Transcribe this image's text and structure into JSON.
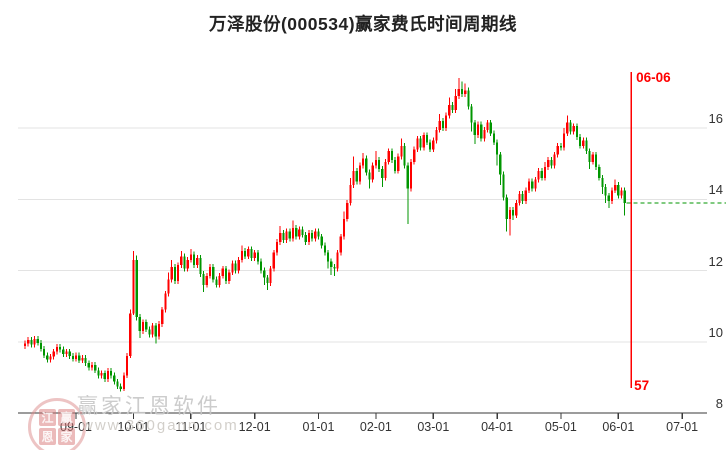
{
  "window": {
    "title": "万泽股份(000534)赢家费氏时间周期线"
  },
  "colors": {
    "up": "#ff0000",
    "down": "#009600",
    "grid": "#e3e3e3",
    "axis": "#3a3a3a",
    "tick_label": "#333333",
    "marker": "#ff0000",
    "watermark_text": "#c7c7c7",
    "background": "#ffffff"
  },
  "y_axis": {
    "labels": [
      "16",
      "14",
      "12",
      "10",
      "8"
    ],
    "prices": [
      16,
      14,
      12,
      10,
      8
    ]
  },
  "x_axis": {
    "labels": [
      "09-01",
      "10-01",
      "11-01",
      "12-01",
      "01-01",
      "02-01",
      "03-01",
      "04-01",
      "05-01",
      "06-01",
      "07-01"
    ],
    "indices": [
      16,
      34,
      52,
      72,
      92,
      110,
      128,
      148,
      168,
      186,
      206
    ]
  },
  "marker_line": {
    "date_label": "06-06",
    "count_label": "57",
    "index": 190
  },
  "last_price_line": {
    "price": 13.9,
    "style": "dashed"
  },
  "watermark": {
    "brand": "赢家江恩软件",
    "site": "www.360gann.com",
    "seal_chars": "江赢恩家"
  },
  "chart_data": {
    "type": "candlestick",
    "title": "万泽股份(000534)赢家费氏时间周期线",
    "stock": {
      "name": "万泽股份",
      "code": "000534"
    },
    "indicator": "赢家费氏时间周期线",
    "fib_time_marker": {
      "date": "06-06",
      "bar_count": 57
    },
    "ylim": [
      8,
      17.8
    ],
    "grid": "horizontal-only",
    "x_tick_labels": [
      "09-01",
      "10-01",
      "11-01",
      "12-01",
      "01-01",
      "02-01",
      "03-01",
      "04-01",
      "05-01",
      "06-01",
      "07-01"
    ],
    "last_close": 13.9,
    "candles_format": [
      "open",
      "high",
      "low",
      "close"
    ],
    "candles": [
      [
        9.88,
        10.03,
        9.8,
        9.95
      ],
      [
        9.95,
        10.13,
        9.87,
        10.05
      ],
      [
        10.05,
        10.13,
        9.84,
        9.92
      ],
      [
        9.92,
        10.16,
        9.84,
        10.08
      ],
      [
        10.08,
        10.16,
        9.89,
        9.97
      ],
      [
        9.97,
        10.05,
        9.72,
        9.8
      ],
      [
        9.8,
        9.88,
        9.54,
        9.62
      ],
      [
        9.62,
        9.7,
        9.42,
        9.5
      ],
      [
        9.5,
        9.66,
        9.42,
        9.58
      ],
      [
        9.58,
        9.8,
        9.5,
        9.72
      ],
      [
        9.72,
        9.93,
        9.64,
        9.85
      ],
      [
        9.85,
        9.93,
        9.7,
        9.78
      ],
      [
        9.78,
        9.86,
        9.57,
        9.65
      ],
      [
        9.65,
        9.8,
        9.57,
        9.72
      ],
      [
        9.72,
        9.8,
        9.52,
        9.6
      ],
      [
        9.6,
        9.68,
        9.44,
        9.52
      ],
      [
        9.52,
        9.7,
        9.44,
        9.62
      ],
      [
        9.62,
        9.7,
        9.4,
        9.48
      ],
      [
        9.48,
        9.63,
        9.4,
        9.55
      ],
      [
        9.55,
        9.63,
        9.32,
        9.4
      ],
      [
        9.4,
        9.48,
        9.2,
        9.28
      ],
      [
        9.28,
        9.43,
        9.2,
        9.35
      ],
      [
        9.35,
        9.43,
        9.12,
        9.2
      ],
      [
        9.2,
        9.28,
        8.97,
        9.05
      ],
      [
        9.05,
        9.2,
        8.97,
        9.12
      ],
      [
        9.12,
        9.2,
        8.87,
        8.95
      ],
      [
        8.95,
        9.26,
        8.87,
        9.18
      ],
      [
        9.18,
        9.26,
        8.97,
        9.05
      ],
      [
        9.05,
        9.13,
        8.8,
        8.88
      ],
      [
        8.88,
        8.96,
        8.67,
        8.75
      ],
      [
        8.75,
        8.83,
        8.6,
        8.68
      ],
      [
        8.68,
        9.13,
        8.62,
        9.05
      ],
      [
        9.05,
        9.68,
        8.98,
        9.6
      ],
      [
        9.6,
        10.9,
        9.55,
        10.8
      ],
      [
        10.8,
        12.55,
        10.75,
        12.3
      ],
      [
        12.3,
        12.42,
        10.6,
        10.7
      ],
      [
        10.7,
        10.78,
        10.1,
        10.3
      ],
      [
        10.3,
        10.63,
        10.22,
        10.55
      ],
      [
        10.55,
        10.63,
        10.27,
        10.35
      ],
      [
        10.35,
        10.43,
        10.12,
        10.2
      ],
      [
        10.2,
        10.53,
        10.12,
        10.45
      ],
      [
        10.45,
        10.53,
        9.95,
        10.15
      ],
      [
        10.15,
        10.58,
        10.07,
        10.5
      ],
      [
        10.5,
        10.98,
        10.42,
        10.9
      ],
      [
        10.9,
        11.43,
        10.82,
        11.35
      ],
      [
        11.35,
        11.95,
        11.27,
        11.75
      ],
      [
        11.75,
        12.3,
        11.67,
        12.1
      ],
      [
        12.1,
        12.18,
        11.62,
        11.7
      ],
      [
        11.7,
        12.23,
        11.62,
        12.15
      ],
      [
        12.15,
        12.55,
        12.07,
        12.4
      ],
      [
        12.4,
        12.48,
        11.97,
        12.05
      ],
      [
        12.05,
        12.38,
        11.97,
        12.3
      ],
      [
        12.3,
        12.6,
        12.22,
        12.45
      ],
      [
        12.45,
        12.53,
        12.07,
        12.15
      ],
      [
        12.15,
        12.43,
        12.07,
        12.35
      ],
      [
        12.35,
        12.43,
        11.82,
        11.9
      ],
      [
        11.9,
        11.98,
        11.4,
        11.6
      ],
      [
        11.6,
        11.93,
        11.52,
        11.85
      ],
      [
        11.85,
        12.18,
        11.77,
        12.1
      ],
      [
        12.1,
        12.18,
        11.67,
        11.75
      ],
      [
        11.75,
        11.83,
        11.52,
        11.6
      ],
      [
        11.6,
        11.93,
        11.52,
        11.85
      ],
      [
        11.85,
        12.13,
        11.77,
        12.05
      ],
      [
        12.05,
        12.13,
        11.62,
        11.7
      ],
      [
        11.7,
        12.03,
        11.62,
        11.95
      ],
      [
        11.95,
        12.28,
        11.87,
        12.2
      ],
      [
        12.2,
        12.28,
        11.92,
        12
      ],
      [
        12,
        12.38,
        11.92,
        12.3
      ],
      [
        12.3,
        12.7,
        12.22,
        12.55
      ],
      [
        12.55,
        12.63,
        12.32,
        12.4
      ],
      [
        12.4,
        12.68,
        12.32,
        12.6
      ],
      [
        12.6,
        12.68,
        12.27,
        12.35
      ],
      [
        12.35,
        12.58,
        12.27,
        12.5
      ],
      [
        12.5,
        12.58,
        12.17,
        12.25
      ],
      [
        12.25,
        12.33,
        11.92,
        12
      ],
      [
        12,
        12.08,
        11.6,
        11.8
      ],
      [
        11.8,
        11.88,
        11.45,
        11.65
      ],
      [
        11.65,
        12.13,
        11.57,
        12.05
      ],
      [
        12.05,
        12.58,
        11.97,
        12.5
      ],
      [
        12.5,
        12.88,
        12.42,
        12.8
      ],
      [
        12.8,
        13.25,
        12.72,
        13.05
      ],
      [
        13.05,
        13.13,
        12.77,
        12.85
      ],
      [
        12.85,
        13.18,
        12.77,
        13.1
      ],
      [
        13.1,
        13.18,
        12.82,
        12.9
      ],
      [
        12.9,
        13.4,
        12.82,
        13.2
      ],
      [
        13.2,
        13.28,
        12.87,
        12.95
      ],
      [
        12.95,
        13.23,
        12.87,
        13.15
      ],
      [
        13.15,
        13.23,
        12.92,
        13
      ],
      [
        13,
        13.08,
        12.72,
        12.8
      ],
      [
        12.8,
        13.13,
        12.72,
        13.05
      ],
      [
        13.05,
        13.13,
        12.82,
        12.9
      ],
      [
        12.9,
        13.18,
        12.82,
        13.1
      ],
      [
        13.1,
        13.18,
        12.87,
        12.95
      ],
      [
        12.95,
        13.03,
        12.62,
        12.7
      ],
      [
        12.7,
        12.78,
        12.42,
        12.5
      ],
      [
        12.5,
        12.58,
        12.05,
        12.25
      ],
      [
        12.25,
        12.33,
        11.88,
        12.1
      ],
      [
        12.1,
        12.18,
        11.85,
        12.05
      ],
      [
        12.05,
        12.58,
        11.97,
        12.5
      ],
      [
        12.5,
        13.03,
        12.42,
        12.95
      ],
      [
        12.95,
        13.65,
        12.87,
        13.45
      ],
      [
        13.45,
        13.98,
        13.37,
        13.9
      ],
      [
        13.9,
        14.6,
        13.82,
        14.4
      ],
      [
        14.4,
        15.2,
        14.32,
        14.8
      ],
      [
        14.8,
        14.88,
        14.42,
        14.5
      ],
      [
        14.5,
        15.03,
        14.42,
        14.95
      ],
      [
        14.95,
        15.3,
        14.87,
        15.15
      ],
      [
        15.15,
        15.23,
        14.67,
        14.75
      ],
      [
        14.75,
        14.83,
        14.3,
        14.55
      ],
      [
        14.55,
        15.03,
        14.47,
        14.95
      ],
      [
        14.95,
        15.35,
        14.87,
        15.1
      ],
      [
        15.1,
        15.18,
        14.77,
        14.85
      ],
      [
        14.85,
        14.93,
        14.35,
        14.6
      ],
      [
        14.6,
        15.13,
        14.52,
        15.05
      ],
      [
        15.05,
        15.43,
        14.97,
        15.35
      ],
      [
        15.35,
        15.43,
        15.02,
        15.1
      ],
      [
        15.1,
        15.18,
        14.72,
        14.8
      ],
      [
        14.8,
        15.28,
        14.72,
        15.2
      ],
      [
        15.2,
        15.7,
        15.12,
        15.5
      ],
      [
        15.5,
        15.58,
        14.87,
        14.95
      ],
      [
        14.95,
        15.03,
        13.3,
        14.3
      ],
      [
        14.3,
        15.13,
        14.22,
        15.05
      ],
      [
        15.05,
        15.48,
        14.97,
        15.4
      ],
      [
        15.4,
        15.78,
        15.32,
        15.7
      ],
      [
        15.7,
        15.78,
        15.37,
        15.45
      ],
      [
        15.45,
        15.88,
        15.37,
        15.8
      ],
      [
        15.8,
        15.88,
        15.52,
        15.6
      ],
      [
        15.6,
        15.68,
        15.32,
        15.4
      ],
      [
        15.4,
        15.73,
        15.32,
        15.65
      ],
      [
        15.65,
        16.03,
        15.57,
        15.95
      ],
      [
        15.95,
        16.4,
        15.87,
        16.2
      ],
      [
        16.2,
        16.28,
        15.92,
        16
      ],
      [
        16,
        16.43,
        15.92,
        16.35
      ],
      [
        16.35,
        16.85,
        16.27,
        16.65
      ],
      [
        16.65,
        16.73,
        16.42,
        16.5
      ],
      [
        16.5,
        17.1,
        16.42,
        16.9
      ],
      [
        16.9,
        17.4,
        16.82,
        17.1
      ],
      [
        17.1,
        17.3,
        16.87,
        16.95
      ],
      [
        16.95,
        17.25,
        16.87,
        17.05
      ],
      [
        17.05,
        17.13,
        16.52,
        16.6
      ],
      [
        16.6,
        16.68,
        15.9,
        16.15
      ],
      [
        16.15,
        16.23,
        15.55,
        15.8
      ],
      [
        15.8,
        16.18,
        15.72,
        16.1
      ],
      [
        16.1,
        16.18,
        15.62,
        15.7
      ],
      [
        15.7,
        16.03,
        15.62,
        15.95
      ],
      [
        15.95,
        16.23,
        15.87,
        16.15
      ],
      [
        16.15,
        16.23,
        15.77,
        15.85
      ],
      [
        15.85,
        15.93,
        15.52,
        15.6
      ],
      [
        15.6,
        15.68,
        14.95,
        15.25
      ],
      [
        15.25,
        15.33,
        14.4,
        14.7
      ],
      [
        14.7,
        14.78,
        13.97,
        14.05
      ],
      [
        14.05,
        14.13,
        13.1,
        13.45
      ],
      [
        13.45,
        13.78,
        12.98,
        13.7
      ],
      [
        13.7,
        13.78,
        13.42,
        13.55
      ],
      [
        13.55,
        13.98,
        13.47,
        13.9
      ],
      [
        13.9,
        14.23,
        13.82,
        14.15
      ],
      [
        14.15,
        14.23,
        13.87,
        13.95
      ],
      [
        13.95,
        14.33,
        13.87,
        14.25
      ],
      [
        14.25,
        14.58,
        14.17,
        14.5
      ],
      [
        14.5,
        14.58,
        14.22,
        14.3
      ],
      [
        14.3,
        14.63,
        14.22,
        14.55
      ],
      [
        14.55,
        14.88,
        14.47,
        14.8
      ],
      [
        14.8,
        14.88,
        14.52,
        14.6
      ],
      [
        14.6,
        15.05,
        14.52,
        14.9
      ],
      [
        14.9,
        15.18,
        14.82,
        15.1
      ],
      [
        15.1,
        15.18,
        14.87,
        14.95
      ],
      [
        14.95,
        15.33,
        14.87,
        15.25
      ],
      [
        15.25,
        15.58,
        15.17,
        15.5
      ],
      [
        15.5,
        15.58,
        15.37,
        15.45
      ],
      [
        15.45,
        16,
        15.37,
        15.85
      ],
      [
        15.85,
        16.35,
        15.77,
        16.15
      ],
      [
        16.15,
        16.23,
        15.82,
        15.9
      ],
      [
        15.9,
        16.13,
        15.82,
        16.05
      ],
      [
        16.05,
        16.13,
        15.67,
        15.75
      ],
      [
        15.75,
        15.83,
        15.42,
        15.5
      ],
      [
        15.5,
        15.73,
        15.42,
        15.65
      ],
      [
        15.65,
        15.73,
        15.27,
        15.35
      ],
      [
        15.35,
        15.43,
        14.85,
        15.05
      ],
      [
        15.05,
        15.33,
        14.97,
        15.25
      ],
      [
        15.25,
        15.33,
        14.82,
        14.9
      ],
      [
        14.9,
        14.98,
        14.52,
        14.6
      ],
      [
        14.6,
        14.68,
        14.15,
        14.35
      ],
      [
        14.35,
        14.43,
        13.9,
        14.1
      ],
      [
        14.1,
        14.18,
        13.75,
        13.95
      ],
      [
        13.95,
        14.33,
        13.87,
        14.25
      ],
      [
        14.25,
        14.55,
        14.17,
        14.4
      ],
      [
        14.4,
        14.48,
        14.02,
        14.1
      ],
      [
        14.1,
        14.33,
        14.02,
        14.25
      ],
      [
        14.25,
        14.33,
        13.55,
        13.9
      ]
    ]
  }
}
